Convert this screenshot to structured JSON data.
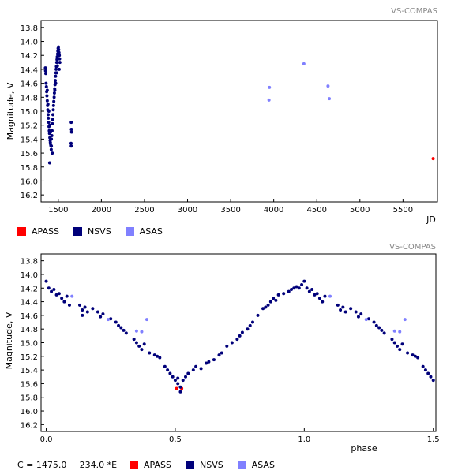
{
  "chart_data": [
    {
      "type": "scatter",
      "watermark": "VS-COMPAS",
      "title": "",
      "xlabel": "JD",
      "ylabel": "Magnitude, V",
      "xlim": [
        1300,
        5900
      ],
      "ylim": [
        13.7,
        16.3
      ],
      "y_inverted": true,
      "grid": false,
      "legend_position": "bottom-left",
      "xticks": [
        1500,
        2000,
        2500,
        3000,
        3500,
        4000,
        4500,
        5000,
        5500
      ],
      "xtick_labels": [
        "1500",
        "2000",
        "2500",
        "3000",
        "3500",
        "4000",
        "4500",
        "5000",
        "5500"
      ],
      "yticks": [
        13.8,
        14.0,
        14.2,
        14.4,
        14.6,
        14.8,
        15.0,
        15.2,
        15.4,
        15.6,
        15.8,
        16.0,
        16.2
      ],
      "ytick_labels": [
        "13.8",
        "14.0",
        "14.2",
        "14.4",
        "14.6",
        "14.8",
        "15.0",
        "15.2",
        "15.4",
        "15.6",
        "15.8",
        "16.0",
        "16.2"
      ],
      "series": [
        {
          "name": "APASS",
          "color": "#ff0000",
          "points": [
            [
              5850,
              15.68
            ]
          ]
        },
        {
          "name": "NSVS",
          "color": "#00007a",
          "points": [
            [
              1350,
              14.38
            ],
            [
              1352,
              14.42
            ],
            [
              1355,
              14.46
            ],
            [
              1358,
              14.6
            ],
            [
              1362,
              14.65
            ],
            [
              1365,
              14.72
            ],
            [
              1368,
              14.78
            ],
            [
              1372,
              14.85
            ],
            [
              1375,
              14.92
            ],
            [
              1378,
              14.98
            ],
            [
              1382,
              15.05
            ],
            [
              1385,
              15.1
            ],
            [
              1388,
              15.16
            ],
            [
              1392,
              15.22
            ],
            [
              1395,
              15.28
            ],
            [
              1398,
              15.32
            ],
            [
              1402,
              15.38
            ],
            [
              1405,
              15.42
            ],
            [
              1408,
              15.45
            ],
            [
              1412,
              15.48
            ],
            [
              1415,
              15.5
            ],
            [
              1418,
              15.55
            ],
            [
              1372,
              14.7
            ],
            [
              1380,
              14.9
            ],
            [
              1390,
              15.0
            ],
            [
              1400,
              15.2
            ],
            [
              1410,
              15.3
            ],
            [
              1420,
              15.4
            ],
            [
              1425,
              15.35
            ],
            [
              1428,
              15.28
            ],
            [
              1432,
              15.18
            ],
            [
              1435,
              15.12
            ],
            [
              1438,
              15.05
            ],
            [
              1442,
              14.98
            ],
            [
              1445,
              14.92
            ],
            [
              1448,
              14.86
            ],
            [
              1452,
              14.8
            ],
            [
              1455,
              14.74
            ],
            [
              1458,
              14.68
            ],
            [
              1462,
              14.62
            ],
            [
              1465,
              14.56
            ],
            [
              1468,
              14.5
            ],
            [
              1472,
              14.45
            ],
            [
              1475,
              14.4
            ],
            [
              1478,
              14.36
            ],
            [
              1482,
              14.3
            ],
            [
              1485,
              14.26
            ],
            [
              1488,
              14.22
            ],
            [
              1492,
              14.18
            ],
            [
              1495,
              14.14
            ],
            [
              1498,
              14.1
            ],
            [
              1502,
              14.08
            ],
            [
              1505,
              14.12
            ],
            [
              1508,
              14.16
            ],
            [
              1512,
              14.2
            ],
            [
              1515,
              14.25
            ],
            [
              1518,
              14.3
            ],
            [
              1460,
              14.7
            ],
            [
              1470,
              14.6
            ],
            [
              1480,
              14.45
            ],
            [
              1490,
              14.35
            ],
            [
              1500,
              14.25
            ],
            [
              1510,
              14.4
            ],
            [
              1430,
              15.6
            ],
            [
              1400,
              15.74
            ],
            [
              1420,
              15.5
            ],
            [
              1650,
              15.16
            ],
            [
              1652,
              15.26
            ],
            [
              1654,
              15.3
            ],
            [
              1648,
              15.46
            ],
            [
              1650,
              15.5
            ]
          ]
        },
        {
          "name": "ASAS",
          "color": "#8080ff",
          "points": [
            [
              3950,
              14.66
            ],
            [
              3945,
              14.84
            ],
            [
              4350,
              14.32
            ],
            [
              4630,
              14.64
            ],
            [
              4645,
              14.82
            ]
          ]
        }
      ]
    },
    {
      "type": "scatter",
      "watermark": "VS-COMPAS",
      "title": "",
      "xlabel": "phase",
      "ylabel": "Magnitude, V",
      "ephemeris": "C = 1475.0 + 234.0 *E",
      "xlim": [
        -0.02,
        1.51
      ],
      "ylim": [
        13.7,
        16.3
      ],
      "y_inverted": true,
      "grid": false,
      "legend_position": "bottom-left",
      "xticks": [
        0.0,
        0.5,
        1.0,
        1.5
      ],
      "xtick_labels": [
        "0.0",
        "0.5",
        "1.0",
        "1.5"
      ],
      "yticks": [
        13.8,
        14.0,
        14.2,
        14.4,
        14.6,
        14.8,
        15.0,
        15.2,
        15.4,
        15.6,
        15.8,
        16.0,
        16.2
      ],
      "ytick_labels": [
        "13.8",
        "14.0",
        "14.2",
        "14.4",
        "14.6",
        "14.8",
        "15.0",
        "15.2",
        "15.4",
        "15.6",
        "15.8",
        "16.0",
        "16.2"
      ],
      "series": [
        {
          "name": "APASS",
          "color": "#ff0000",
          "points": [
            [
              0.505,
              15.67
            ],
            [
              0.525,
              15.67
            ]
          ]
        },
        {
          "name": "NSVS",
          "color": "#00007a",
          "points": [
            [
              0.0,
              14.1
            ],
            [
              0.01,
              14.2
            ],
            [
              0.02,
              14.25
            ],
            [
              0.03,
              14.22
            ],
            [
              0.04,
              14.3
            ],
            [
              0.05,
              14.28
            ],
            [
              0.06,
              14.35
            ],
            [
              0.07,
              14.4
            ],
            [
              0.08,
              14.32
            ],
            [
              0.09,
              14.45
            ],
            [
              0.13,
              14.45
            ],
            [
              0.14,
              14.52
            ],
            [
              0.15,
              14.48
            ],
            [
              0.14,
              14.6
            ],
            [
              0.16,
              14.55
            ],
            [
              0.18,
              14.5
            ],
            [
              0.2,
              14.55
            ],
            [
              0.21,
              14.62
            ],
            [
              0.22,
              14.58
            ],
            [
              0.25,
              14.65
            ],
            [
              0.27,
              14.7
            ],
            [
              0.28,
              14.75
            ],
            [
              0.29,
              14.78
            ],
            [
              0.3,
              14.82
            ],
            [
              0.31,
              14.86
            ],
            [
              0.34,
              14.95
            ],
            [
              0.35,
              15.0
            ],
            [
              0.36,
              15.05
            ],
            [
              0.37,
              15.1
            ],
            [
              0.38,
              15.02
            ],
            [
              0.4,
              15.15
            ],
            [
              0.42,
              15.18
            ],
            [
              0.43,
              15.2
            ],
            [
              0.44,
              15.22
            ],
            [
              0.46,
              15.35
            ],
            [
              0.47,
              15.4
            ],
            [
              0.48,
              15.45
            ],
            [
              0.49,
              15.5
            ],
            [
              0.5,
              15.55
            ],
            [
              0.51,
              15.6
            ],
            [
              0.52,
              15.65
            ],
            [
              0.53,
              15.55
            ],
            [
              0.54,
              15.5
            ],
            [
              0.55,
              15.45
            ],
            [
              0.52,
              15.72
            ],
            [
              0.51,
              15.52
            ],
            [
              0.57,
              15.4
            ],
            [
              0.58,
              15.35
            ],
            [
              0.6,
              15.38
            ],
            [
              0.62,
              15.3
            ],
            [
              0.63,
              15.28
            ],
            [
              0.65,
              15.25
            ],
            [
              0.67,
              15.18
            ],
            [
              0.68,
              15.15
            ],
            [
              0.7,
              15.05
            ],
            [
              0.72,
              15.0
            ],
            [
              0.74,
              14.95
            ],
            [
              0.75,
              14.9
            ],
            [
              0.76,
              14.85
            ],
            [
              0.78,
              14.8
            ],
            [
              0.79,
              14.75
            ],
            [
              0.8,
              14.7
            ],
            [
              0.82,
              14.6
            ],
            [
              0.84,
              14.5
            ],
            [
              0.85,
              14.48
            ],
            [
              0.86,
              14.45
            ],
            [
              0.87,
              14.4
            ],
            [
              0.88,
              14.35
            ],
            [
              0.89,
              14.38
            ],
            [
              0.9,
              14.3
            ],
            [
              0.92,
              14.28
            ],
            [
              0.94,
              14.25
            ],
            [
              0.95,
              14.22
            ],
            [
              0.96,
              14.2
            ],
            [
              0.97,
              14.18
            ],
            [
              0.98,
              14.2
            ],
            [
              0.99,
              14.15
            ],
            [
              1.0,
              14.1
            ],
            [
              1.01,
              14.2
            ],
            [
              1.02,
              14.25
            ],
            [
              1.03,
              14.22
            ],
            [
              1.04,
              14.3
            ],
            [
              1.05,
              14.28
            ],
            [
              1.06,
              14.35
            ],
            [
              1.07,
              14.4
            ],
            [
              1.08,
              14.32
            ],
            [
              1.13,
              14.45
            ],
            [
              1.14,
              14.52
            ],
            [
              1.15,
              14.48
            ],
            [
              1.16,
              14.55
            ],
            [
              1.18,
              14.5
            ],
            [
              1.2,
              14.55
            ],
            [
              1.21,
              14.62
            ],
            [
              1.22,
              14.58
            ],
            [
              1.25,
              14.65
            ],
            [
              1.27,
              14.7
            ],
            [
              1.28,
              14.75
            ],
            [
              1.29,
              14.78
            ],
            [
              1.3,
              14.82
            ],
            [
              1.31,
              14.86
            ],
            [
              1.34,
              14.95
            ],
            [
              1.35,
              15.0
            ],
            [
              1.36,
              15.05
            ],
            [
              1.37,
              15.1
            ],
            [
              1.38,
              15.02
            ],
            [
              1.4,
              15.15
            ],
            [
              1.42,
              15.18
            ],
            [
              1.43,
              15.2
            ],
            [
              1.44,
              15.22
            ],
            [
              1.46,
              15.35
            ],
            [
              1.47,
              15.4
            ],
            [
              1.48,
              15.45
            ],
            [
              1.49,
              15.5
            ],
            [
              1.5,
              15.55
            ]
          ]
        },
        {
          "name": "ASAS",
          "color": "#8080ff",
          "points": [
            [
              0.1,
              14.32
            ],
            [
              0.24,
              14.66
            ],
            [
              0.35,
              14.83
            ],
            [
              0.37,
              14.84
            ],
            [
              0.39,
              14.66
            ],
            [
              1.1,
              14.32
            ],
            [
              1.24,
              14.66
            ],
            [
              1.35,
              14.83
            ],
            [
              1.37,
              14.84
            ],
            [
              1.39,
              14.66
            ]
          ]
        }
      ]
    }
  ]
}
